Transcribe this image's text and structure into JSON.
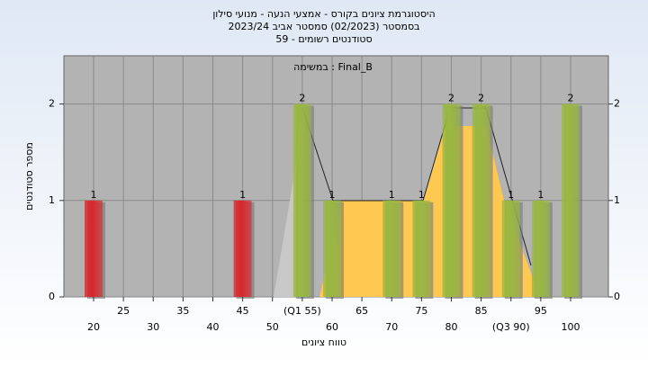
{
  "chart_data": {
    "type": "bar",
    "title": [
      "היסטוגרמת ציונים בקורס - אמצעי הנעה - מנועי סילון",
      "בסמסטר  (02/2023)  סמסטר אביב 2023/24",
      "סטודנטים רשומים - 59"
    ],
    "subtitle": "במשימה : Final_B",
    "x_label": "טווח ציונים",
    "y_label": "מספר סטודנטים",
    "categories": [
      "20",
      "25",
      "30",
      "35",
      "40",
      "45",
      "50",
      "(Q1 55)",
      "60",
      "65",
      "70",
      "75",
      "80",
      "85",
      "(Q3 90)",
      "95",
      "100"
    ],
    "values": [
      1,
      0,
      0,
      0,
      0,
      1,
      0,
      2,
      1,
      0,
      1,
      1,
      2,
      2,
      1,
      1,
      2
    ],
    "colors": [
      "#d9262b",
      "#9ab940",
      "#9ab940",
      "#9ab940",
      "#9ab940",
      "#d9262b",
      "#9ab940",
      "#9ab940",
      "#9ab940",
      "#9ab940",
      "#9ab940",
      "#9ab940",
      "#9ab940",
      "#9ab940",
      "#9ab940",
      "#9ab940",
      "#9ab940"
    ],
    "ylim": [
      0,
      2.5
    ],
    "yticks": [
      0,
      1,
      2
    ],
    "grid": true
  }
}
